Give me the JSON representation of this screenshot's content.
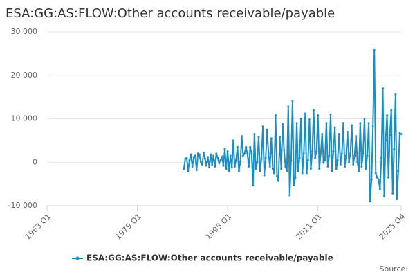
{
  "chart_data": {
    "type": "line",
    "title": "ESA:GG:AS:FLOW:Other accounts receivable/payable",
    "source": "Source:",
    "x": [
      1987.25,
      1987.5,
      1987.75,
      1988,
      1988.25,
      1988.5,
      1988.75,
      1989,
      1989.25,
      1989.5,
      1989.75,
      1990,
      1990.25,
      1990.5,
      1990.75,
      1991,
      1991.25,
      1991.5,
      1991.75,
      1992,
      1992.25,
      1992.5,
      1992.75,
      1993,
      1993.25,
      1993.5,
      1993.75,
      1994,
      1994.25,
      1994.5,
      1994.75,
      1995,
      1995.25,
      1995.5,
      1995.75,
      1996,
      1996.25,
      1996.5,
      1996.75,
      1997,
      1997.25,
      1997.5,
      1997.75,
      1998,
      1998.25,
      1998.5,
      1998.75,
      1999,
      1999.25,
      1999.5,
      1999.75,
      2000,
      2000.25,
      2000.5,
      2000.75,
      2001,
      2001.25,
      2001.5,
      2001.75,
      2002,
      2002.25,
      2002.5,
      2002.75,
      2003,
      2003.25,
      2003.5,
      2003.75,
      2004,
      2004.25,
      2004.5,
      2004.75,
      2005,
      2005.25,
      2005.5,
      2005.75,
      2006,
      2006.25,
      2006.5,
      2006.75,
      2007,
      2007.25,
      2007.5,
      2007.75,
      2008,
      2008.25,
      2008.5,
      2008.75,
      2009,
      2009.25,
      2009.5,
      2009.75,
      2010,
      2010.25,
      2010.5,
      2010.75,
      2011,
      2011.25,
      2011.5,
      2011.75,
      2012,
      2012.25,
      2012.5,
      2012.75,
      2013,
      2013.25,
      2013.5,
      2013.75,
      2014,
      2014.25,
      2014.5,
      2014.75,
      2015,
      2015.25,
      2015.5,
      2015.75,
      2016,
      2016.25,
      2016.5,
      2016.75,
      2017,
      2017.25,
      2017.5,
      2017.75,
      2018,
      2018.25,
      2018.5,
      2018.75,
      2019,
      2019.25,
      2019.5,
      2019.75,
      2020,
      2020.25,
      2020.5,
      2020.75,
      2021,
      2021.25,
      2021.5,
      2021.75,
      2022,
      2022.25,
      2022.5,
      2022.75,
      2023,
      2023.25,
      2023.5,
      2023.75,
      2024,
      2024.25,
      2024.5,
      2024.75,
      2025,
      2025.25,
      2025.5,
      2025.75
    ],
    "series": [
      {
        "name": "ESA:GG:AS:FLOW:Other accounts receivable/payable",
        "color": "#1a8dc4",
        "values": [
          -1500,
          800,
          1000,
          -2000,
          500,
          1800,
          -1000,
          1200,
          1500,
          -1800,
          2000,
          1800,
          0,
          -500,
          2200,
          800,
          -800,
          1200,
          -1200,
          1800,
          -600,
          1500,
          -1000,
          2000,
          1000,
          -200,
          500,
          1200,
          -800,
          3000,
          -1500,
          2500,
          -2000,
          1500,
          -1200,
          5000,
          -1000,
          500,
          3500,
          -2000,
          0,
          6000,
          1500,
          2000,
          3500,
          2000,
          -1000,
          3500,
          2000,
          -5300,
          6500,
          -1500,
          0,
          5800,
          -2000,
          800,
          8200,
          -3000,
          1000,
          7500,
          2000,
          -1000,
          5500,
          -1500,
          -2500,
          10800,
          -3200,
          -4300,
          5800,
          -1500,
          8800,
          2800,
          -1000,
          -2000,
          12800,
          -7600,
          500,
          14000,
          -5300,
          -3500,
          9000,
          -2000,
          1000,
          10000,
          -2500,
          2000,
          11200,
          -2500,
          500,
          9800,
          -1500,
          2500,
          12000,
          1000,
          2500,
          10800,
          -1500,
          2000,
          6500,
          0,
          500,
          9000,
          -1000,
          1500,
          11000,
          -2000,
          2500,
          8000,
          -1500,
          500,
          6500,
          -500,
          2000,
          9000,
          -1000,
          1500,
          7000,
          0,
          2000,
          8500,
          -500,
          1500,
          6000,
          0,
          -2000,
          9000,
          -1000,
          2000,
          10000,
          -1500,
          1500,
          9000,
          -9000,
          -4000,
          8200,
          25800,
          -2500,
          -3500,
          -4000,
          -6200,
          1000,
          17000,
          -7800,
          5000,
          10800,
          -3500,
          6300,
          12000,
          -7200,
          3000,
          15600,
          -8500,
          -2000,
          6700,
          6500
        ]
      }
    ],
    "xlim": [
      1963,
      2025.75
    ],
    "xticks": [
      {
        "value": 1963,
        "label": "1963 Q1"
      },
      {
        "value": 1979,
        "label": "1979 Q1"
      },
      {
        "value": 1995,
        "label": "1995 Q1"
      },
      {
        "value": 2011,
        "label": "2011 Q1"
      },
      {
        "value": 2025.75,
        "label": "2025 Q4"
      }
    ],
    "ylim": [
      -10000,
      30000
    ],
    "yticks": [
      {
        "value": -10000,
        "label": "-10 000"
      },
      0,
      {
        "value": 10000,
        "label": "10 000"
      },
      {
        "value": 20000,
        "label": "20 000"
      },
      {
        "value": 30000,
        "label": "30 000"
      }
    ],
    "grid": true
  }
}
